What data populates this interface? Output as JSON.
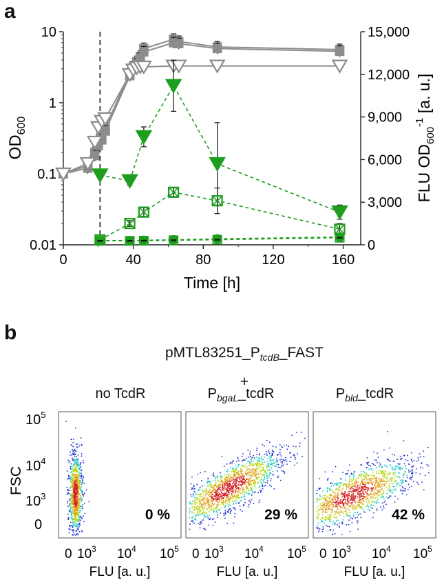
{
  "panel_a": {
    "letter": "a",
    "chart_data": {
      "type": "line",
      "xlabel": "Time [h]",
      "ylabel_left": "OD",
      "ylabel_left_sub": "600",
      "ylabel_right": "FLU OD",
      "ylabel_right_sub": "600",
      "ylabel_right_sup": "-1",
      "ylabel_right_unit": " [a. u.]",
      "xlim": [
        0,
        170
      ],
      "ylim_left": [
        0.01,
        10
      ],
      "yscale_left": "log",
      "ylim_right": [
        0,
        15000
      ],
      "x_ticks": [
        "0",
        "40",
        "80",
        "120",
        "160"
      ],
      "y_left_ticks": [
        "0.01",
        "0.1",
        "1",
        "10"
      ],
      "y_right_ticks": [
        "0",
        "3,000",
        "6,000",
        "9,000",
        "12,000",
        "15,000"
      ],
      "vline_x": 21,
      "colors": {
        "od": "#8c8c8c",
        "flu": "#1e9e1e",
        "err": "#111111"
      },
      "series": [
        {
          "axis": "left",
          "marker": "square",
          "x": [
            0,
            14,
            18,
            20,
            22,
            24,
            38,
            40,
            42,
            44,
            46,
            63,
            66,
            88,
            158
          ],
          "y": [
            0.1,
            0.13,
            0.2,
            0.28,
            0.35,
            0.45,
            2.6,
            3.2,
            3.8,
            4.5,
            5.8,
            7.8,
            7.3,
            6.1,
            5.6
          ]
        },
        {
          "axis": "left",
          "marker": "square",
          "x": [
            0,
            14,
            18,
            20,
            22,
            24,
            38,
            40,
            42,
            44,
            46,
            63,
            66,
            88,
            158
          ],
          "y": [
            0.1,
            0.12,
            0.18,
            0.25,
            0.3,
            0.4,
            2.4,
            3.0,
            3.5,
            4.2,
            5.2,
            7.0,
            6.8,
            5.8,
            5.3
          ]
        },
        {
          "axis": "left",
          "marker": "triangle",
          "x": [
            0,
            14,
            18,
            20,
            22,
            24,
            38,
            40,
            42,
            44,
            46,
            63,
            66,
            88,
            158
          ],
          "y": [
            0.1,
            0.14,
            0.28,
            0.45,
            0.55,
            0.6,
            2.5,
            2.9,
            3.1,
            3.2,
            3.2,
            3.3,
            3.3,
            3.3,
            3.3
          ]
        },
        {
          "axis": "right",
          "marker": "triangle-filled",
          "x": [
            21,
            38,
            46,
            63,
            88,
            158
          ],
          "y": [
            4900,
            4500,
            7600,
            11200,
            5700,
            2300
          ],
          "err": [
            200,
            300,
            700,
            1800,
            2900,
            500
          ]
        },
        {
          "axis": "right",
          "marker": "square-x",
          "x": [
            21,
            38,
            46,
            63,
            88,
            158
          ],
          "y": [
            350,
            1500,
            2300,
            3700,
            3100,
            1100
          ],
          "err": [
            100,
            200,
            300,
            300,
            900,
            400
          ]
        },
        {
          "axis": "right",
          "marker": "circle",
          "x": [
            21,
            38,
            46,
            63,
            88,
            158
          ],
          "y": [
            300,
            300,
            320,
            360,
            420,
            550
          ],
          "err": [
            40,
            40,
            40,
            40,
            40,
            40
          ]
        },
        {
          "axis": "right",
          "marker": "square",
          "x": [
            21,
            38,
            46,
            63,
            88,
            158
          ],
          "y": [
            280,
            280,
            290,
            320,
            360,
            500
          ],
          "err": [
            30,
            30,
            30,
            30,
            30,
            30
          ]
        }
      ]
    }
  },
  "panel_b": {
    "letter": "b",
    "construct_prefix": "pMTL83251_P",
    "construct_sub": "tcdB",
    "construct_suffix": "_FAST",
    "plus": "+",
    "conditions": [
      {
        "pre": "no TcdR",
        "sub": "",
        "post": "",
        "percent": "0 %"
      },
      {
        "pre": "P",
        "sub": "bgaL",
        "post": "_tcdR",
        "percent": "29 %"
      },
      {
        "pre": "P",
        "sub": "bld",
        "post": "_tcdR",
        "percent": "42 %"
      }
    ],
    "ylabel": "FSC",
    "xlabel": "FLU [a. u.]",
    "y_ticks": [
      {
        "base": "10",
        "exp": "5"
      },
      {
        "base": "10",
        "exp": "4"
      },
      {
        "base": "10",
        "exp": "3"
      },
      {
        "base": "0",
        "exp": ""
      }
    ],
    "x_ticks": [
      {
        "base": "0",
        "exp": ""
      },
      {
        "base": "10",
        "exp": "3"
      },
      {
        "base": "10",
        "exp": "4"
      },
      {
        "base": "10",
        "exp": "5"
      }
    ],
    "colors": {
      "density_low": "#1f2fd6",
      "density_mid": "#19c7c0",
      "density_high": "#d21f1f"
    }
  }
}
